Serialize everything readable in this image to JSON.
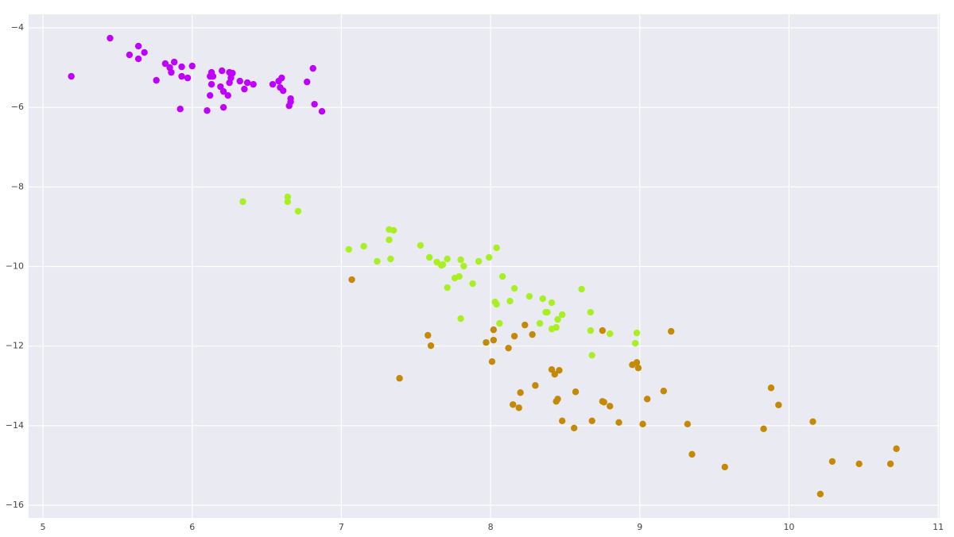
{
  "chart_data": {
    "type": "scatter",
    "xlim": [
      4.904,
      11.01
    ],
    "ylim": [
      -16.32,
      -3.66
    ],
    "xticks": [
      5,
      6,
      7,
      8,
      9,
      10,
      11
    ],
    "yticks": [
      {
        "value": -4,
        "label": "−4"
      },
      {
        "value": -6,
        "label": "−6"
      },
      {
        "value": -8,
        "label": "−8"
      },
      {
        "value": -10,
        "label": "−10"
      },
      {
        "value": -12,
        "label": "−12"
      },
      {
        "value": -14,
        "label": "−14"
      },
      {
        "value": -16,
        "label": "−16"
      }
    ],
    "grid": true,
    "series": [
      {
        "color": "#bf00ff",
        "x": [
          5.19,
          5.45,
          5.58,
          5.64,
          5.64,
          5.68,
          5.76,
          5.82,
          5.85,
          5.88,
          5.86,
          5.93,
          5.93,
          5.97,
          6.0,
          5.92,
          6.12,
          6.13,
          6.14,
          6.13,
          6.12,
          6.1,
          6.2,
          6.19,
          6.21,
          6.21,
          6.24,
          6.25,
          6.27,
          6.26,
          6.25,
          6.32,
          6.35,
          6.37,
          6.41,
          6.54,
          6.58,
          6.6,
          6.59,
          6.61,
          6.65,
          6.66,
          6.66,
          6.77,
          6.81,
          6.82,
          6.87
        ],
        "values": [
          -5.22,
          -4.26,
          -4.68,
          -4.46,
          -4.78,
          -4.62,
          -5.32,
          -4.9,
          -5.0,
          -4.86,
          -5.12,
          -4.98,
          -5.22,
          -5.26,
          -4.96,
          -6.04,
          -5.22,
          -5.12,
          -5.22,
          -5.42,
          -5.7,
          -6.08,
          -5.08,
          -5.48,
          -6.0,
          -5.6,
          -5.7,
          -5.12,
          -5.14,
          -5.26,
          -5.38,
          -5.34,
          -5.54,
          -5.38,
          -5.42,
          -5.42,
          -5.34,
          -5.26,
          -5.5,
          -5.58,
          -5.96,
          -5.78,
          -5.86,
          -5.36,
          -5.02,
          -5.92,
          -6.1
        ]
      },
      {
        "color": "#a8f021",
        "x": [
          6.34,
          6.64,
          6.64,
          6.71,
          7.05,
          7.15,
          7.24,
          7.32,
          7.35,
          7.32,
          7.33,
          7.53,
          7.59,
          7.64,
          7.67,
          7.68,
          7.71,
          7.71,
          7.76,
          7.79,
          7.8,
          7.82,
          7.88,
          7.92,
          7.99,
          8.04,
          8.03,
          8.04,
          8.06,
          8.08,
          8.13,
          8.16,
          8.26,
          8.35,
          8.33,
          8.37,
          8.38,
          8.41,
          8.41,
          8.44,
          8.45,
          8.48,
          7.8,
          8.61,
          8.67,
          8.67,
          8.68,
          8.8,
          8.98,
          8.97
        ],
        "values": [
          -8.37,
          -8.25,
          -8.37,
          -8.61,
          -9.57,
          -9.49,
          -9.87,
          -9.07,
          -9.09,
          -9.33,
          -9.81,
          -9.47,
          -9.77,
          -9.89,
          -9.97,
          -9.95,
          -9.81,
          -10.53,
          -10.29,
          -10.25,
          -9.83,
          -9.99,
          -10.43,
          -9.87,
          -9.77,
          -9.53,
          -10.89,
          -10.95,
          -11.43,
          -10.25,
          -10.87,
          -10.55,
          -10.75,
          -10.81,
          -11.43,
          -11.15,
          -11.15,
          -10.91,
          -11.57,
          -11.53,
          -11.33,
          -11.21,
          -11.31,
          -10.57,
          -11.15,
          -11.61,
          -12.23,
          -11.69,
          -11.67,
          -11.93
        ]
      },
      {
        "color": "#c48a06",
        "x": [
          7.07,
          7.39,
          7.58,
          7.6,
          7.97,
          8.02,
          8.02,
          8.01,
          8.12,
          8.16,
          8.23,
          8.28,
          8.3,
          8.2,
          8.15,
          8.19,
          8.41,
          8.43,
          8.46,
          8.44,
          8.45,
          8.48,
          8.56,
          8.57,
          8.68,
          8.75,
          8.75,
          8.76,
          8.8,
          8.86,
          8.95,
          8.98,
          8.99,
          9.02,
          9.05,
          9.16,
          9.21,
          9.32,
          9.35,
          9.57,
          9.83,
          9.88,
          9.93,
          10.16,
          10.21,
          10.29,
          10.47,
          10.68,
          10.72
        ],
        "values": [
          -10.33,
          -12.81,
          -11.73,
          -11.99,
          -11.91,
          -11.59,
          -11.85,
          -12.39,
          -12.05,
          -11.75,
          -11.47,
          -11.71,
          -12.99,
          -13.17,
          -13.47,
          -13.55,
          -12.59,
          -12.71,
          -12.61,
          -13.39,
          -13.33,
          -13.88,
          -14.06,
          -13.15,
          -13.88,
          -11.61,
          -13.39,
          -13.41,
          -13.51,
          -13.92,
          -12.47,
          -12.41,
          -12.55,
          -13.96,
          -13.33,
          -13.13,
          -11.63,
          -13.96,
          -14.72,
          -15.04,
          -14.08,
          -13.05,
          -13.48,
          -13.9,
          -15.72,
          -14.9,
          -14.96,
          -14.96,
          -14.58
        ]
      }
    ]
  }
}
